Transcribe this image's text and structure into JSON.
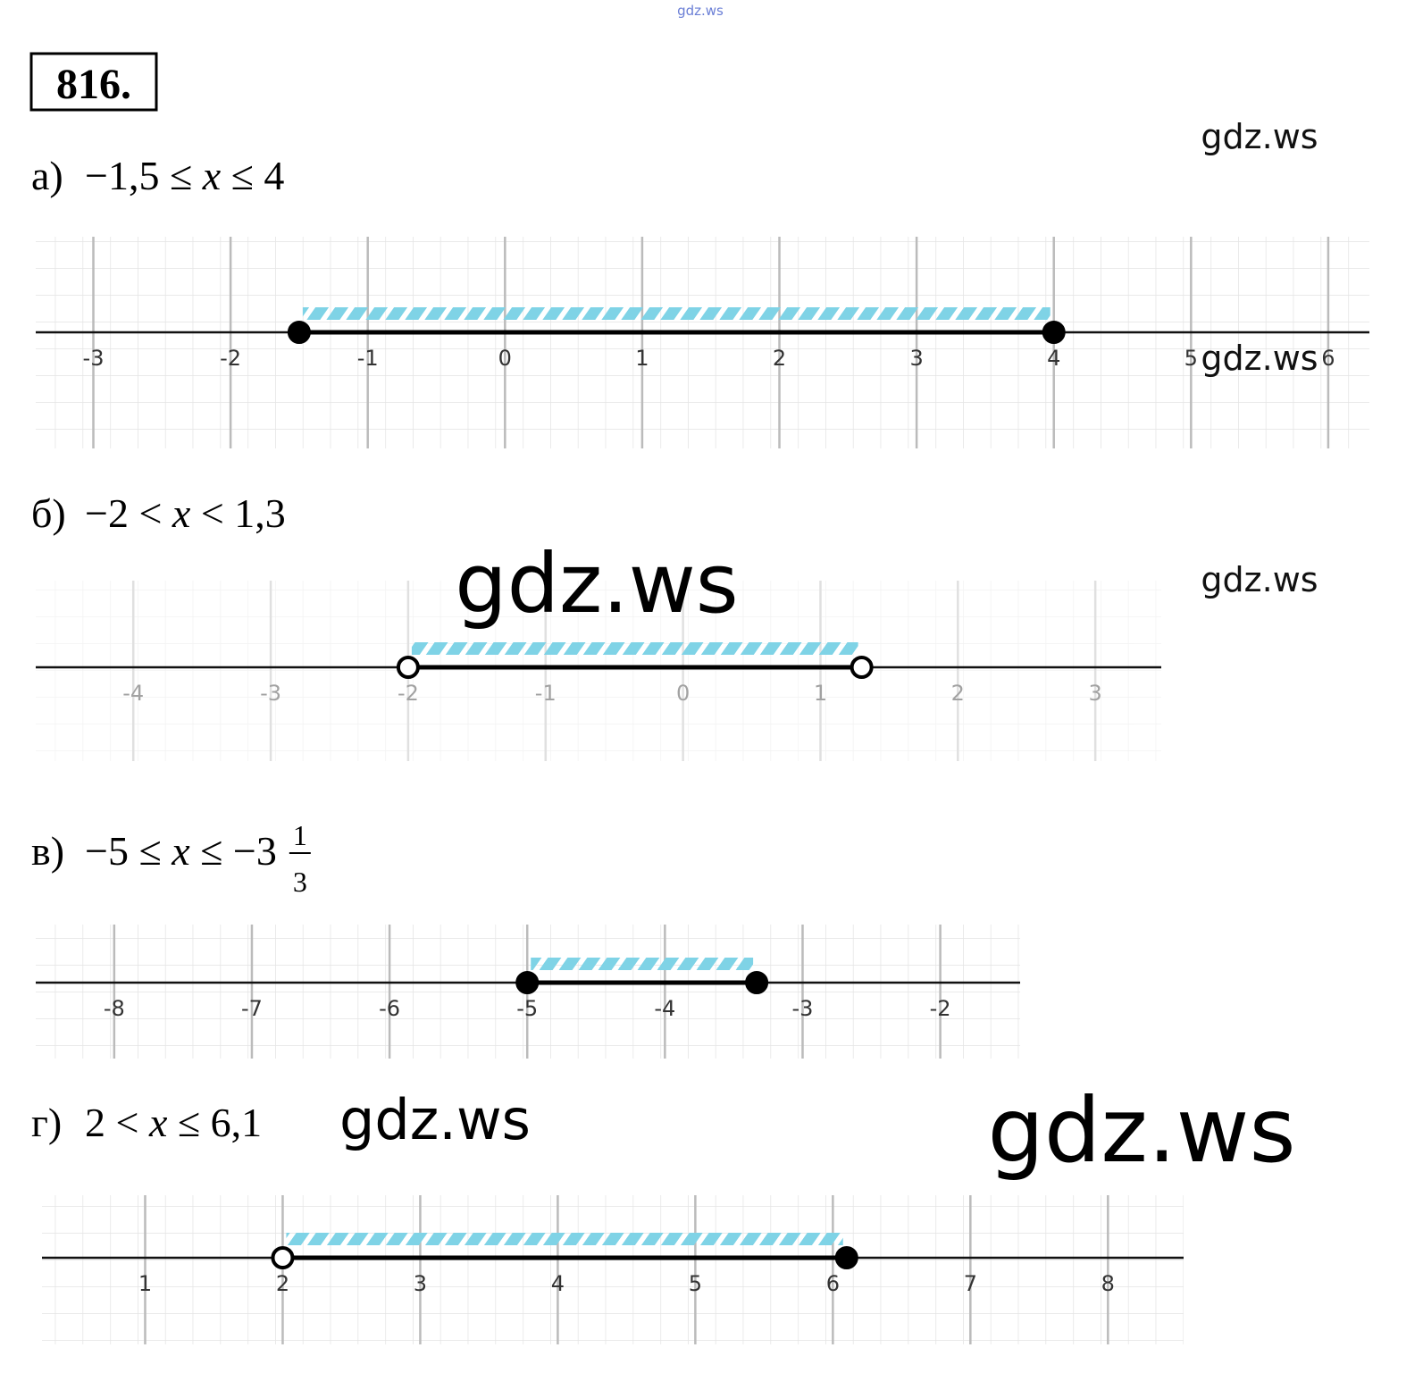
{
  "problem": "816.",
  "parts": [
    {
      "label": "а)",
      "inequality": [
        "−1,5 ≤ ",
        "x",
        " ≤ 4"
      ],
      "xlim": [
        -3.42,
        6.3
      ],
      "ticks": [
        -3,
        -2,
        -1,
        0,
        1,
        2,
        3,
        4,
        5,
        6
      ],
      "endpoints": [
        {
          "value": -1.5,
          "closed": true
        },
        {
          "value": 4,
          "closed": true
        }
      ]
    },
    {
      "label": "б)",
      "inequality": [
        "−2 < ",
        "x",
        " < 1,3"
      ],
      "xlim": [
        -4.71,
        3.48
      ],
      "ticks": [
        -4,
        -3,
        -2,
        -1,
        0,
        1,
        2,
        3
      ],
      "endpoints": [
        {
          "value": -2,
          "closed": false
        },
        {
          "value": 1.3,
          "closed": false
        }
      ]
    },
    {
      "label": "в)",
      "inequality": [
        "−5 ≤ ",
        "x",
        " ≤ −3"
      ],
      "fraction": {
        "numerator": "1",
        "denominator": "3"
      },
      "xlim": [
        -8.57,
        -1.42
      ],
      "ticks": [
        -8,
        -7,
        -6,
        -5,
        -4,
        -3,
        -2
      ],
      "endpoints": [
        {
          "value": -5,
          "closed": true
        },
        {
          "value": -3.3333333333,
          "closed": true
        }
      ]
    },
    {
      "label": "г)",
      "inequality": [
        "2 < ",
        "x",
        " ≤ 6,1"
      ],
      "xlim": [
        0.25,
        8.55
      ],
      "ticks": [
        1,
        2,
        3,
        4,
        5,
        6,
        7,
        8
      ],
      "endpoints": [
        {
          "value": 2,
          "closed": false
        },
        {
          "value": 6.1,
          "closed": true
        }
      ]
    }
  ],
  "watermarks": [
    "gdz.ws",
    "gdz.ws",
    "gdz.ws",
    "gdz.ws",
    "gdz.ws",
    "gdz.ws",
    "gdz.ws"
  ]
}
